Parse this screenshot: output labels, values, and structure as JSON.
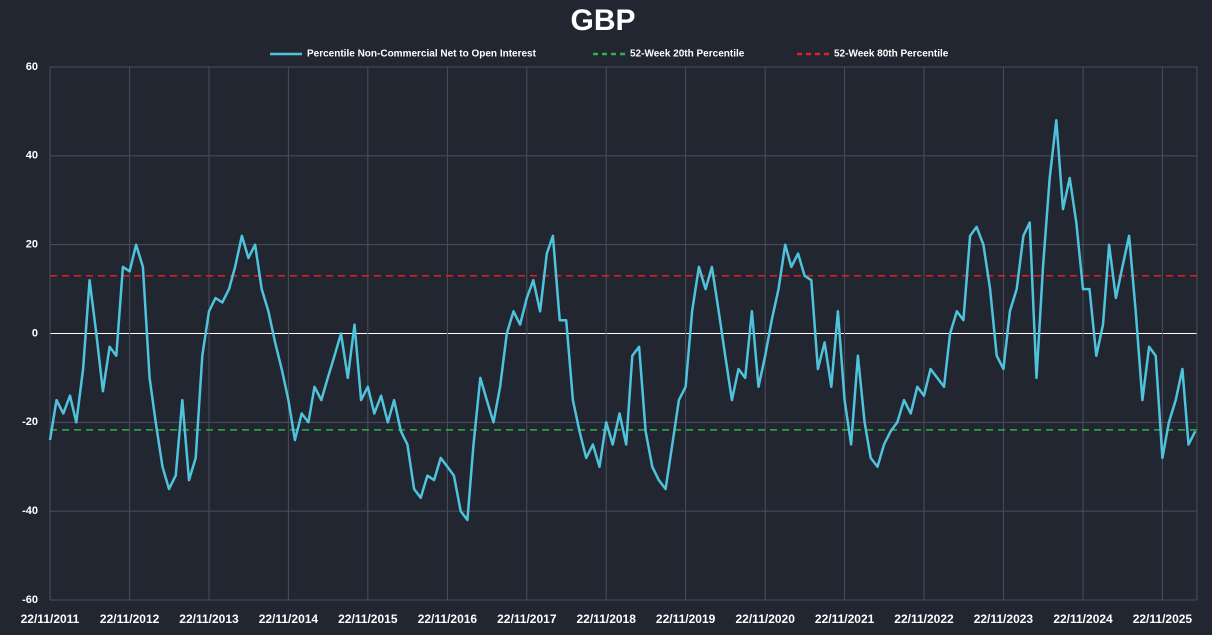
{
  "chart_data": {
    "type": "line",
    "title": "GBP",
    "xlim": [
      "22/11/2011",
      "30/04/2026"
    ],
    "xticks": [
      "22/11/2011",
      "22/11/2012",
      "22/11/2013",
      "22/11/2014",
      "22/11/2015",
      "22/11/2016",
      "22/11/2017",
      "22/11/2018",
      "22/11/2019",
      "22/11/2020",
      "22/11/2021",
      "22/11/2022",
      "22/11/2023",
      "22/11/2024",
      "22/11/2025"
    ],
    "ylim": [
      -60,
      60
    ],
    "yticks": [
      -60,
      -40,
      -20,
      0,
      20,
      40,
      60
    ],
    "grid": true,
    "x": [
      "22/11/2011",
      "22/12/2011",
      "22/01/2012",
      "22/02/2012",
      "22/03/2012",
      "22/04/2012",
      "22/05/2012",
      "22/06/2012",
      "22/07/2012",
      "22/08/2012",
      "22/09/2012",
      "22/10/2012",
      "22/11/2012",
      "22/12/2012",
      "22/01/2013",
      "22/02/2013",
      "22/03/2013",
      "22/04/2013",
      "22/05/2013",
      "22/06/2013",
      "22/07/2013",
      "22/08/2013",
      "22/09/2013",
      "22/10/2013",
      "22/11/2013",
      "22/12/2013",
      "22/01/2014",
      "22/02/2014",
      "22/03/2014",
      "22/04/2014",
      "22/05/2014",
      "22/06/2014",
      "22/07/2014",
      "22/08/2014",
      "22/09/2014",
      "22/10/2014",
      "22/11/2014",
      "22/12/2014",
      "22/01/2015",
      "22/02/2015",
      "22/03/2015",
      "22/04/2015",
      "22/05/2015",
      "22/06/2015",
      "22/07/2015",
      "22/08/2015",
      "22/09/2015",
      "22/10/2015",
      "22/11/2015",
      "22/12/2015",
      "22/01/2016",
      "22/02/2016",
      "22/03/2016",
      "22/04/2016",
      "22/05/2016",
      "22/06/2016",
      "22/07/2016",
      "22/08/2016",
      "22/09/2016",
      "22/10/2016",
      "22/11/2016",
      "22/12/2016",
      "22/01/2017",
      "22/02/2017",
      "22/03/2017",
      "22/04/2017",
      "22/05/2017",
      "22/06/2017",
      "22/07/2017",
      "22/08/2017",
      "22/09/2017",
      "22/10/2017",
      "22/11/2017",
      "22/12/2017",
      "22/01/2018",
      "22/02/2018",
      "22/03/2018",
      "22/04/2018",
      "22/05/2018",
      "22/06/2018",
      "22/07/2018",
      "22/08/2018",
      "22/09/2018",
      "22/10/2018",
      "22/11/2018",
      "22/12/2018",
      "22/01/2019",
      "22/02/2019",
      "22/03/2019",
      "22/04/2019",
      "22/05/2019",
      "22/06/2019",
      "22/07/2019",
      "22/08/2019",
      "22/09/2019",
      "22/10/2019",
      "22/11/2019",
      "22/12/2019",
      "22/01/2020",
      "22/02/2020",
      "22/03/2020",
      "22/04/2020",
      "22/05/2020",
      "22/06/2020",
      "22/07/2020",
      "22/08/2020",
      "22/09/2020",
      "22/10/2020",
      "22/11/2020",
      "22/12/2020",
      "22/01/2021",
      "22/02/2021",
      "22/03/2021",
      "22/04/2021",
      "22/05/2021",
      "22/06/2021",
      "22/07/2021",
      "22/08/2021",
      "22/09/2021",
      "22/10/2021",
      "22/11/2021",
      "22/12/2021",
      "22/01/2022",
      "22/02/2022",
      "22/03/2022",
      "22/04/2022",
      "22/05/2022",
      "22/06/2022",
      "22/07/2022",
      "22/08/2022",
      "22/09/2022",
      "22/10/2022",
      "22/11/2022",
      "22/12/2022",
      "22/01/2023",
      "22/02/2023",
      "22/03/2023",
      "22/04/2023",
      "22/05/2023",
      "22/06/2023",
      "22/07/2023",
      "22/08/2023",
      "22/09/2023",
      "22/10/2023",
      "22/11/2023",
      "22/12/2023",
      "22/01/2024",
      "22/02/2024",
      "22/03/2024",
      "22/04/2024",
      "22/05/2024",
      "22/06/2024",
      "22/07/2024",
      "22/08/2024",
      "22/09/2024",
      "22/10/2024",
      "22/11/2024",
      "22/12/2024",
      "22/01/2025",
      "22/02/2025",
      "22/03/2025",
      "22/04/2025",
      "22/05/2025",
      "22/06/2025",
      "22/07/2025",
      "22/08/2025",
      "22/09/2025",
      "22/10/2025",
      "22/11/2025",
      "22/12/2025",
      "22/01/2026",
      "22/02/2026",
      "22/03/2026",
      "22/04/2026"
    ],
    "series": [
      {
        "name": "Percentile Non-Commercial Net to Open Interest",
        "color": "#4fc3dc",
        "values": [
          -24,
          -15,
          -18,
          -14,
          -20,
          -8,
          12,
          0,
          -13,
          -3,
          -5,
          15,
          14,
          20,
          15,
          -10,
          -20,
          -30,
          -35,
          -32,
          -15,
          -33,
          -28,
          -5,
          5,
          8,
          7,
          10,
          15,
          22,
          17,
          20,
          10,
          5,
          -2,
          -8,
          -15,
          -24,
          -18,
          -20,
          -12,
          -15,
          -10,
          -5,
          0,
          -10,
          2,
          -15,
          -12,
          -18,
          -14,
          -20,
          -15,
          -22,
          -25,
          -35,
          -37,
          -32,
          -33,
          -28,
          -30,
          -32,
          -40,
          -42,
          -25,
          -10,
          -15,
          -20,
          -12,
          0,
          5,
          2,
          8,
          12,
          5,
          18,
          22,
          3,
          3,
          -15,
          -22,
          -28,
          -25,
          -30,
          -20,
          -25,
          -18,
          -25,
          -5,
          -3,
          -22,
          -30,
          -33,
          -35,
          -25,
          -15,
          -12,
          5,
          15,
          10,
          15,
          5,
          -5,
          -15,
          -8,
          -10,
          5,
          -12,
          -5,
          3,
          10,
          20,
          15,
          18,
          13,
          12,
          -8,
          -2,
          -12,
          5,
          -15,
          -25,
          -5,
          -20,
          -28,
          -30,
          -25,
          -22,
          -20,
          -15,
          -18,
          -12,
          -14,
          -8,
          -10,
          -12,
          0,
          5,
          3,
          22,
          24,
          20,
          10,
          -5,
          -8,
          5,
          10,
          22,
          25,
          -10,
          15,
          35,
          48,
          28,
          35,
          25,
          10,
          10,
          -5,
          2,
          20,
          8,
          15,
          22,
          5,
          -15,
          -3,
          -5,
          -28,
          -20,
          -15,
          -8,
          -25,
          -22
        ]
      }
    ],
    "reference_lines": [
      {
        "name": "52-Week 20th Percentile",
        "color": "#2db34a",
        "value": -21.7
      },
      {
        "name": "52-Week 80th Percentile",
        "color": "#e02020",
        "value": 13
      }
    ]
  }
}
